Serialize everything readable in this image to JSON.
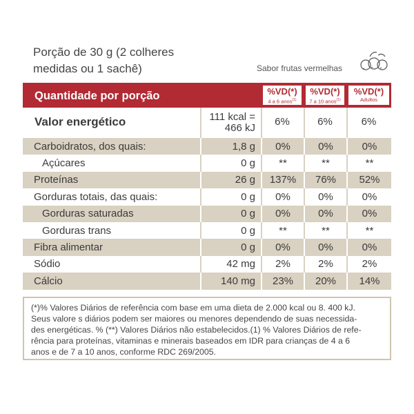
{
  "header": {
    "title_lines": [
      "Porção de 30 g (2 colheres",
      "medidas ou 1 sachê)"
    ],
    "flavor": "Sabor frutas vermelhas"
  },
  "table": {
    "header": {
      "label": "Quantidade por porção",
      "columns": [
        {
          "title": "%VD(*)",
          "sub": "4 a 6 anos",
          "sup": "(1)"
        },
        {
          "title": "%VD(*)",
          "sub": "7 a 10 anos",
          "sup": "(1)"
        },
        {
          "title": "%VD(*)",
          "sub": "Adultos"
        }
      ]
    },
    "energy": {
      "label": "Valor energético",
      "amount_lines": [
        "111 kcal =",
        "466 kJ"
      ],
      "vd": [
        "6%",
        "6%",
        "6%"
      ]
    },
    "rows": [
      [
        "Carboidratos, dos quais:",
        "1,8 g",
        "0%",
        "0%",
        "0%"
      ],
      [
        "Açúcares",
        "0 g",
        "**",
        "**",
        "**"
      ],
      [
        "Proteínas",
        "26 g",
        "137%",
        "76%",
        "52%"
      ],
      [
        "Gorduras totais, das quais:",
        "0 g",
        "0%",
        "0%",
        "0%"
      ],
      [
        "Gorduras saturadas",
        "0 g",
        "0%",
        "0%",
        "0%"
      ],
      [
        "Gorduras trans",
        "0 g",
        "**",
        "**",
        "**"
      ],
      [
        "Fibra alimentar",
        "0 g",
        "0%",
        "0%",
        "0%"
      ],
      [
        "Sódio",
        "42 mg",
        "2%",
        "2%",
        "2%"
      ],
      [
        "Cálcio",
        "140 mg",
        "23%",
        "20%",
        "14%"
      ]
    ]
  },
  "footnote": [
    "(*)% Valores Diários de referência com base em uma dieta de 2.000 kcal ou 8. 400 kJ.",
    "Seus valore s diários podem ser maiores ou menores dependendo de suas necessida-",
    "des energéticas. % (**) Valores Diários não estabelecidos.(1) % Valores Diários de refe-",
    "rência para proteínas, vitaminas e minerais baseados em IDR para crianças de 4 a 6",
    "anos e de 7 a 10 anos, conforme RDC 269/2005."
  ]
}
